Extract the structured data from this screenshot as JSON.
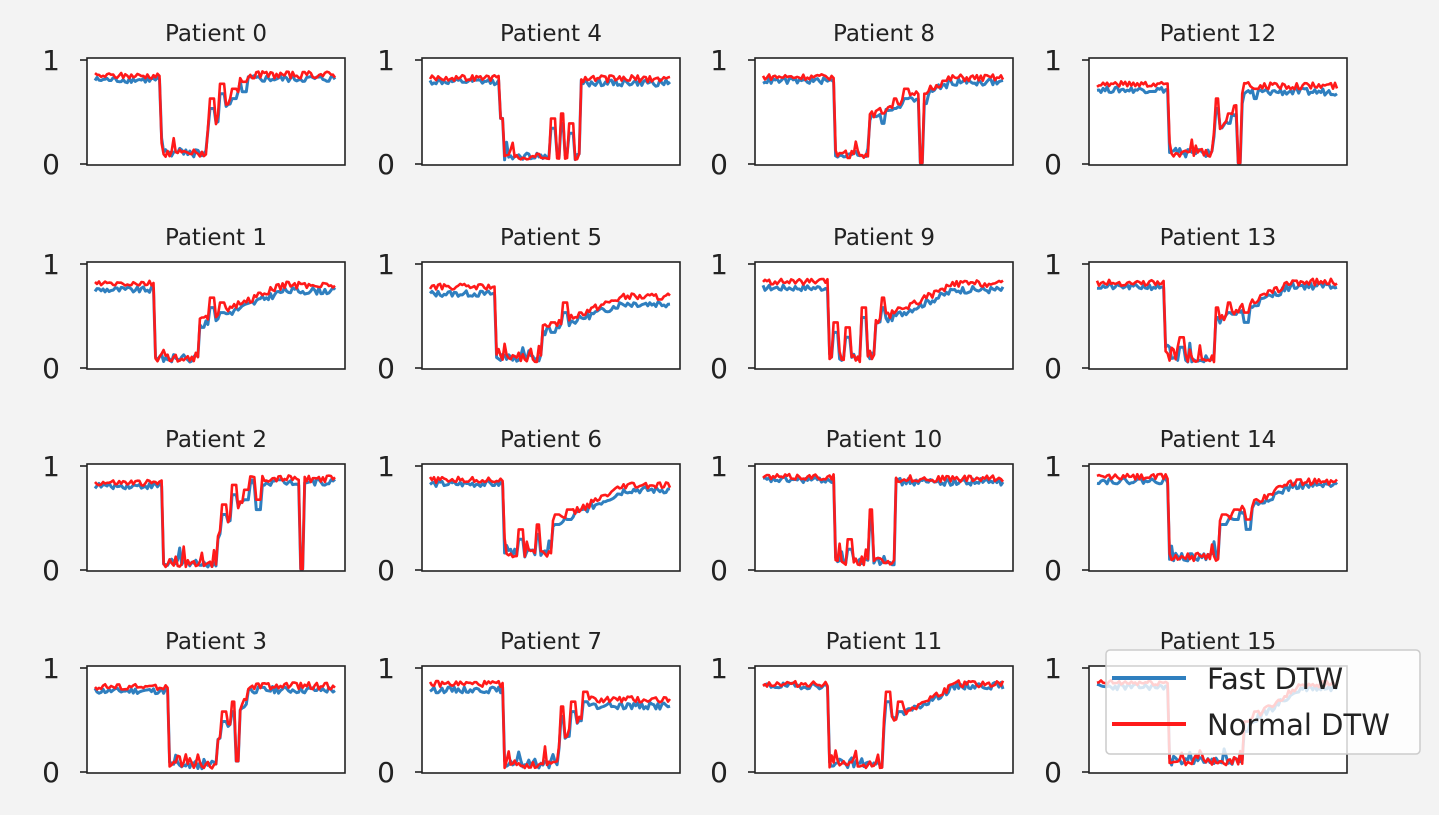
{
  "colors": {
    "fast": "#2f7fbf",
    "normal": "#ff1a1a",
    "axes": "#222222",
    "background": "#f3f3f3"
  },
  "legend": {
    "placement": "bottom-right",
    "entries": [
      "Fast DTW",
      "Normal DTW"
    ]
  },
  "chart_data": {
    "type": "line",
    "layout": "4x4 small multiples, column-major order",
    "series_names": [
      "Fast DTW",
      "Normal DTW"
    ],
    "ylim": [
      0,
      1
    ],
    "yticks": [
      "0",
      "1"
    ],
    "grid": false,
    "panels": [
      {
        "title": "Patient 0",
        "pre": 0.84,
        "post": 0.85,
        "drop": 0.27,
        "rise": 0.47,
        "floor": 0.06,
        "recovery": "spiky",
        "spikes": [
          [
            0.49,
            0.55
          ],
          [
            0.53,
            0.7
          ],
          [
            0.58,
            0.65
          ],
          [
            0.62,
            0.72
          ]
        ],
        "normal_offset": 0.04,
        "dips": []
      },
      {
        "title": "Patient 1",
        "pre": 0.78,
        "post": 0.77,
        "drop": 0.25,
        "rise": 0.43,
        "floor": 0.05,
        "recovery": "slow",
        "spikes": [
          [
            0.45,
            0.4
          ],
          [
            0.49,
            0.6
          ],
          [
            0.53,
            0.55
          ]
        ],
        "normal_offset": 0.06,
        "dips": []
      },
      {
        "title": "Patient 2",
        "pre": 0.84,
        "post": 0.88,
        "drop": 0.28,
        "rise": 0.51,
        "floor": 0.02,
        "recovery": "spiky",
        "spikes": [
          [
            0.54,
            0.55
          ],
          [
            0.58,
            0.75
          ],
          [
            0.63,
            0.7
          ],
          [
            0.68,
            0.6
          ]
        ],
        "normal_offset": 0.03,
        "dips": [
          [
            0.86,
            0.0
          ]
        ]
      },
      {
        "title": "Patient 3",
        "pre": 0.81,
        "post": 0.82,
        "drop": 0.31,
        "rise": 0.51,
        "floor": 0.02,
        "recovery": "spiky",
        "spikes": [
          [
            0.54,
            0.5
          ],
          [
            0.58,
            0.6
          ]
        ],
        "normal_offset": 0.04,
        "dips": [
          [
            0.59,
            0.1
          ]
        ]
      },
      {
        "title": "Patient 4",
        "pre": 0.82,
        "post": 0.81,
        "drop": 0.31,
        "rise": 0.63,
        "floor": 0.03,
        "recovery": "fast",
        "spikes": [
          [
            0.51,
            0.35
          ],
          [
            0.55,
            0.4
          ],
          [
            0.59,
            0.3
          ]
        ],
        "normal_offset": 0.04,
        "dips": [
          [
            0.3,
            0.45
          ]
        ]
      },
      {
        "title": "Patient 5",
        "pre": 0.74,
        "post": 0.64,
        "drop": 0.27,
        "rise": 0.47,
        "floor": 0.05,
        "recovery": "slow",
        "spikes": [
          [
            0.51,
            0.35
          ],
          [
            0.56,
            0.55
          ]
        ],
        "normal_offset": 0.07,
        "dips": []
      },
      {
        "title": "Patient 6",
        "pre": 0.86,
        "post": 0.8,
        "drop": 0.31,
        "rise": 0.51,
        "floor": 0.12,
        "recovery": "slow",
        "spikes": [
          [
            0.38,
            0.3
          ],
          [
            0.45,
            0.35
          ],
          [
            0.53,
            0.45
          ],
          [
            0.58,
            0.5
          ]
        ],
        "normal_offset": 0.04,
        "dips": []
      },
      {
        "title": "Patient 7",
        "pre": 0.82,
        "post": 0.66,
        "drop": 0.31,
        "rise": 0.53,
        "floor": 0.03,
        "recovery": "spiky",
        "spikes": [
          [
            0.55,
            0.55
          ],
          [
            0.6,
            0.6
          ],
          [
            0.65,
            0.7
          ]
        ],
        "normal_offset": 0.06,
        "dips": []
      },
      {
        "title": "Patient 8",
        "pre": 0.83,
        "post": 0.82,
        "drop": 0.3,
        "rise": 0.44,
        "floor": 0.05,
        "recovery": "slow",
        "spikes": [
          [
            0.5,
            0.4
          ],
          [
            0.55,
            0.55
          ],
          [
            0.6,
            0.65
          ],
          [
            0.67,
            0.6
          ]
        ],
        "normal_offset": 0.04,
        "dips": [
          [
            0.66,
            0.0
          ]
        ]
      },
      {
        "title": "Patient 9",
        "pre": 0.8,
        "post": 0.78,
        "drop": 0.27,
        "rise": 0.47,
        "floor": 0.05,
        "recovery": "slow",
        "spikes": [
          [
            0.3,
            0.35
          ],
          [
            0.35,
            0.3
          ],
          [
            0.42,
            0.5
          ],
          [
            0.5,
            0.6
          ]
        ],
        "normal_offset": 0.06,
        "dips": []
      },
      {
        "title": "Patient 10",
        "pre": 0.9,
        "post": 0.88,
        "drop": 0.3,
        "rise": 0.55,
        "floor": 0.04,
        "recovery": "fast",
        "spikes": [
          [
            0.36,
            0.2
          ],
          [
            0.45,
            0.5
          ]
        ],
        "normal_offset": 0.03,
        "dips": []
      },
      {
        "title": "Patient 11",
        "pre": 0.86,
        "post": 0.86,
        "drop": 0.27,
        "rise": 0.5,
        "floor": 0.03,
        "recovery": "slow",
        "spikes": [
          [
            0.52,
            0.7
          ],
          [
            0.57,
            0.6
          ]
        ],
        "normal_offset": 0.02,
        "dips": []
      },
      {
        "title": "Patient 12",
        "pre": 0.74,
        "post": 0.72,
        "drop": 0.3,
        "rise": 0.48,
        "floor": 0.06,
        "recovery": "spiky",
        "spikes": [
          [
            0.5,
            0.55
          ],
          [
            0.55,
            0.4
          ],
          [
            0.6,
            0.6
          ],
          [
            0.66,
            0.65
          ]
        ],
        "normal_offset": 0.06,
        "dips": [
          [
            0.59,
            0.0
          ]
        ]
      },
      {
        "title": "Patient 13",
        "pre": 0.81,
        "post": 0.82,
        "drop": 0.28,
        "rise": 0.5,
        "floor": 0.05,
        "recovery": "slow",
        "spikes": [
          [
            0.35,
            0.2
          ],
          [
            0.5,
            0.5
          ],
          [
            0.55,
            0.55
          ],
          [
            0.62,
            0.45
          ]
        ],
        "normal_offset": 0.04,
        "dips": []
      },
      {
        "title": "Patient 14",
        "pre": 0.89,
        "post": 0.84,
        "drop": 0.3,
        "rise": 0.51,
        "floor": 0.08,
        "recovery": "slow",
        "spikes": [
          [
            0.53,
            0.45
          ],
          [
            0.58,
            0.5
          ],
          [
            0.63,
            0.4
          ]
        ],
        "normal_offset": 0.04,
        "dips": []
      },
      {
        "title": "Patient 15",
        "pre": 0.85,
        "post": 0.84,
        "drop": 0.3,
        "rise": 0.62,
        "floor": 0.06,
        "recovery": "slow",
        "spikes": [
          [
            0.62,
            0.4
          ],
          [
            0.66,
            0.5
          ]
        ],
        "normal_offset": 0.04,
        "dips": []
      }
    ]
  }
}
